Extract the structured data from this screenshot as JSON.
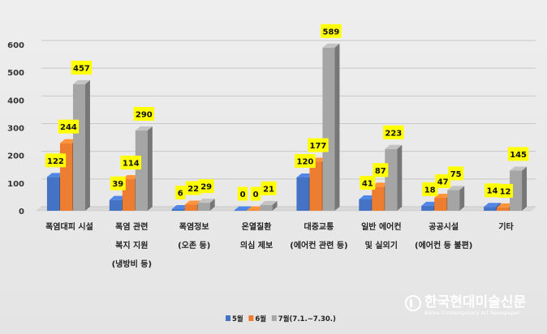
{
  "chart_data": {
    "type": "bar",
    "categories": [
      [
        "폭염대피 시설"
      ],
      [
        "폭염 관련",
        "복지 지원",
        "(냉방비 등)"
      ],
      [
        "폭염정보",
        "(오존 등)"
      ],
      [
        "온열질환",
        "의심 제보"
      ],
      [
        "대중교통",
        "(에어컨 관련 등)"
      ],
      [
        "일반 에어컨",
        "및 실외기"
      ],
      [
        "공공시설",
        "(에어컨 등 불편)"
      ],
      [
        "기타"
      ]
    ],
    "series": [
      {
        "name": "5월",
        "color": "#4472c4",
        "values": [
          122,
          39,
          6,
          0,
          120,
          41,
          18,
          14
        ]
      },
      {
        "name": "6월",
        "color": "#ed7d31",
        "values": [
          244,
          114,
          22,
          0,
          177,
          87,
          47,
          12
        ]
      },
      {
        "name": "7월(7.1.~7.30.)",
        "color": "#a5a5a5",
        "values": [
          457,
          290,
          29,
          21,
          589,
          223,
          75,
          145
        ]
      }
    ],
    "ylim": [
      0,
      600
    ],
    "yticks": [
      0,
      100,
      200,
      300,
      400,
      500,
      600
    ],
    "grid": true,
    "legend_position": "bottom-center",
    "data_label_background": "#ffff00"
  },
  "watermark": {
    "text": "한국현대미술신문",
    "subtext": "Korea Contemporary Art Newspaper"
  }
}
